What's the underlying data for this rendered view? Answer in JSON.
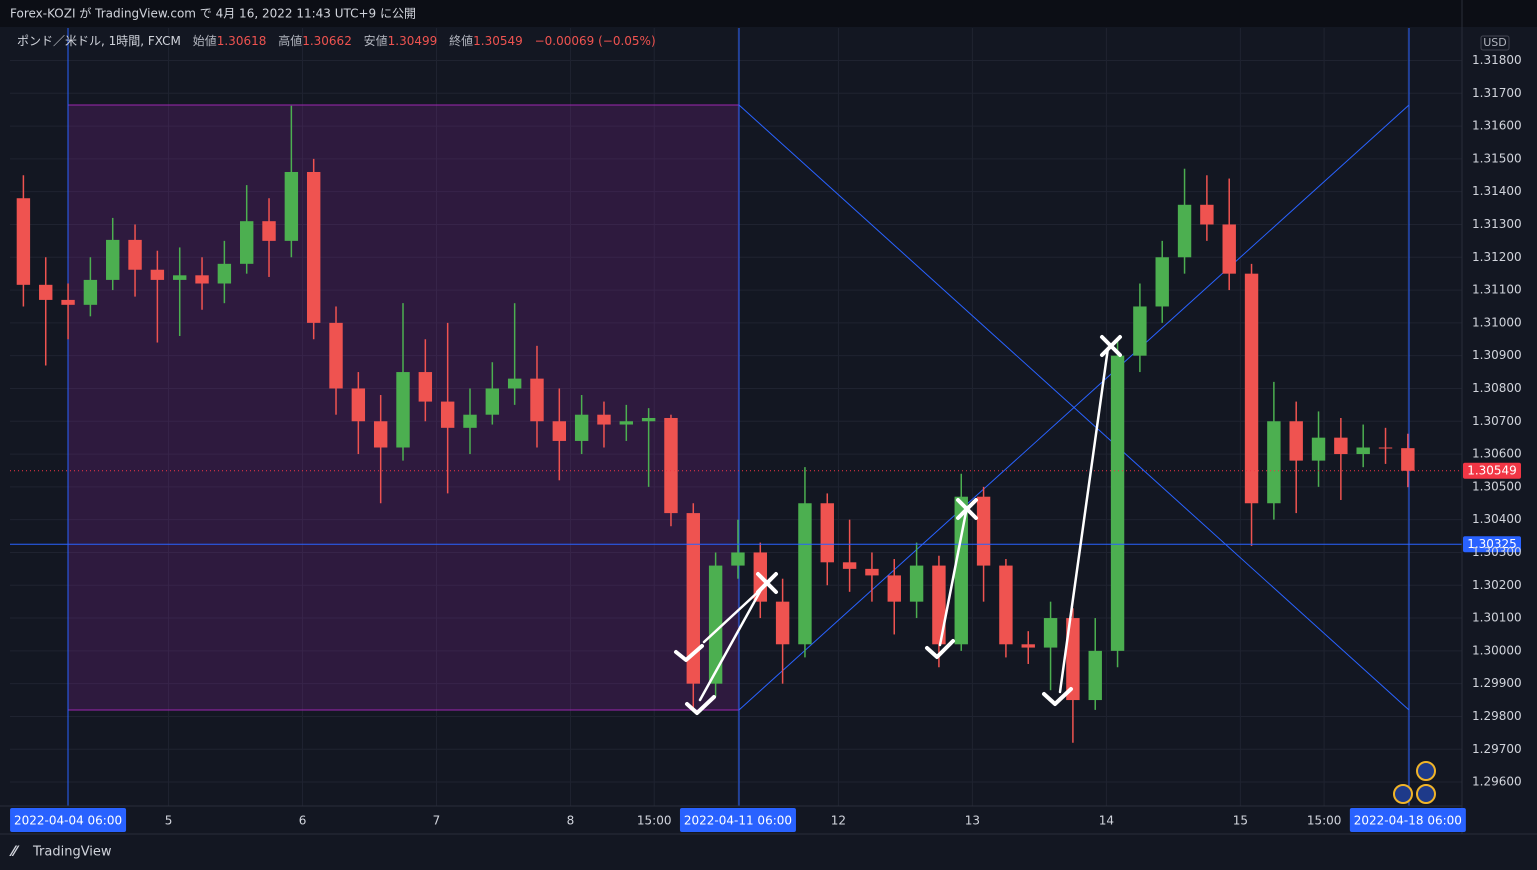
{
  "header": {
    "title": "Forex-KOZI が TradingView.com で 4月 16, 2022 11:43 UTC+9 に公開"
  },
  "legend": {
    "symbol": "ポンド／米ドル, 1時間, FXCM",
    "ohlc": [
      {
        "label": "始値",
        "value": "1.30618"
      },
      {
        "label": "高値",
        "value": "1.30662"
      },
      {
        "label": "安値",
        "value": "1.30499"
      },
      {
        "label": "終値",
        "value": "1.30549"
      }
    ],
    "change": "−0.00069 (−0.05%)"
  },
  "footer": {
    "brand": "TradingView"
  },
  "chart_data": {
    "type": "candlestick",
    "currency": "USD",
    "up_color": "#4caf50",
    "down_color": "#ef5350",
    "x": [
      -8,
      -4,
      0,
      4,
      8,
      12,
      16,
      20,
      24,
      28,
      32,
      36,
      40,
      44,
      48,
      52,
      56,
      60,
      64,
      68,
      72,
      76,
      80,
      84,
      88,
      92,
      96,
      100,
      104,
      108,
      112,
      116,
      120,
      124,
      128,
      132,
      136,
      140,
      144,
      148,
      152,
      156,
      160,
      164,
      168,
      172,
      176,
      180,
      184,
      188,
      192,
      196,
      200,
      204,
      208,
      212,
      216,
      220,
      224,
      228,
      232,
      236,
      240
    ],
    "open": [
      1.3138,
      1.31116,
      1.3107,
      1.31055,
      1.31131,
      1.31253,
      1.31162,
      1.31131,
      1.31145,
      1.3112,
      1.3118,
      1.3131,
      1.3125,
      1.3146,
      1.31,
      1.308,
      1.307,
      1.3062,
      1.3085,
      1.3076,
      1.3068,
      1.3072,
      1.308,
      1.3083,
      1.307,
      1.3064,
      1.3072,
      1.3069,
      1.307,
      1.3071,
      1.3042,
      1.299,
      1.3026,
      1.303,
      1.3015,
      1.3002,
      1.3045,
      1.3027,
      1.3025,
      1.3023,
      1.3015,
      1.3026,
      1.3002,
      1.3047,
      1.3026,
      1.3002,
      1.3001,
      1.301,
      1.2985,
      1.3,
      1.309,
      1.3105,
      1.312,
      1.3136,
      1.313,
      1.3115,
      1.3045,
      1.307,
      1.3058,
      1.3065,
      1.306,
      1.3062,
      1.30618
    ],
    "high": [
      1.3145,
      1.312,
      1.3112,
      1.312,
      1.3132,
      1.313,
      1.3122,
      1.3123,
      1.312,
      1.3125,
      1.3142,
      1.3138,
      1.31662,
      1.315,
      1.3105,
      1.3085,
      1.3078,
      1.3106,
      1.3095,
      1.31,
      1.308,
      1.3088,
      1.3106,
      1.3093,
      1.308,
      1.3078,
      1.3076,
      1.3075,
      1.3074,
      1.3072,
      1.3045,
      1.303,
      1.304,
      1.3033,
      1.3022,
      1.3056,
      1.3048,
      1.304,
      1.303,
      1.3028,
      1.3033,
      1.3029,
      1.3054,
      1.305,
      1.3028,
      1.3006,
      1.3015,
      1.3013,
      1.301,
      1.3095,
      1.3112,
      1.3125,
      1.3147,
      1.3145,
      1.3144,
      1.3118,
      1.3082,
      1.3076,
      1.3073,
      1.3071,
      1.3069,
      1.3068,
      1.30662
    ],
    "low": [
      1.3105,
      1.3087,
      1.3095,
      1.3102,
      1.311,
      1.3108,
      1.3094,
      1.3096,
      1.3104,
      1.3106,
      1.3115,
      1.3114,
      1.312,
      1.3095,
      1.3072,
      1.306,
      1.3045,
      1.3058,
      1.307,
      1.3048,
      1.306,
      1.3069,
      1.3075,
      1.3062,
      1.3052,
      1.306,
      1.3062,
      1.3064,
      1.305,
      1.3038,
      1.2982,
      1.2986,
      1.3022,
      1.301,
      1.299,
      1.2998,
      1.302,
      1.3018,
      1.3015,
      1.3005,
      1.301,
      1.2995,
      1.3,
      1.3015,
      1.2998,
      1.2996,
      1.2988,
      1.2972,
      1.2982,
      1.2995,
      1.3085,
      1.31,
      1.3115,
      1.3125,
      1.311,
      1.3032,
      1.304,
      1.3042,
      1.305,
      1.3046,
      1.3056,
      1.3057,
      1.30499
    ],
    "close": [
      1.31116,
      1.3107,
      1.31055,
      1.31131,
      1.31253,
      1.31162,
      1.31131,
      1.31145,
      1.3112,
      1.3118,
      1.3131,
      1.3125,
      1.3146,
      1.31,
      1.308,
      1.307,
      1.3062,
      1.3085,
      1.3076,
      1.3068,
      1.3072,
      1.308,
      1.3083,
      1.307,
      1.3064,
      1.3072,
      1.3069,
      1.307,
      1.3071,
      1.3042,
      1.299,
      1.3026,
      1.303,
      1.3015,
      1.3002,
      1.3045,
      1.3027,
      1.3025,
      1.3023,
      1.3015,
      1.3026,
      1.3002,
      1.3047,
      1.3026,
      1.3002,
      1.3001,
      1.301,
      1.2985,
      1.3,
      1.309,
      1.3105,
      1.312,
      1.3136,
      1.313,
      1.3115,
      1.3045,
      1.307,
      1.3058,
      1.3065,
      1.306,
      1.3062,
      1.30618,
      1.30549
    ],
    "xlim": [
      -10.4,
      249.7
    ],
    "xticks": [
      {
        "value": 0,
        "label": "2022-04-04   06:00"
      },
      {
        "value": 18,
        "label": "5"
      },
      {
        "value": 42,
        "label": "6"
      },
      {
        "value": 66,
        "label": "7"
      },
      {
        "value": 90,
        "label": "8"
      },
      {
        "value": 105,
        "label": "15:00"
      },
      {
        "value": 120,
        "label": "2022-04-11   06:00"
      },
      {
        "value": 138,
        "label": "12"
      },
      {
        "value": 162,
        "label": "13"
      },
      {
        "value": 186,
        "label": "14"
      },
      {
        "value": 210,
        "label": "15"
      },
      {
        "value": 225,
        "label": "15:00"
      },
      {
        "value": 240,
        "label": "2022-04-18   06:00"
      }
    ],
    "ylim": [
      1.29527,
      1.31899
    ],
    "yticks": [
      {
        "value": 1.296,
        "label": "1.29600"
      },
      {
        "value": 1.297,
        "label": "1.29700"
      },
      {
        "value": 1.298,
        "label": "1.29800"
      },
      {
        "value": 1.299,
        "label": "1.29900"
      },
      {
        "value": 1.3,
        "label": "1.30000"
      },
      {
        "value": 1.301,
        "label": "1.30100"
      },
      {
        "value": 1.302,
        "label": "1.30200"
      },
      {
        "value": 1.303,
        "label": "1.30300"
      },
      {
        "value": 1.304,
        "label": "1.30400"
      },
      {
        "value": 1.305,
        "label": "1.30500"
      },
      {
        "value": 1.306,
        "label": "1.30600"
      },
      {
        "value": 1.307,
        "label": "1.30700"
      },
      {
        "value": 1.308,
        "label": "1.30800"
      },
      {
        "value": 1.309,
        "label": "1.30900"
      },
      {
        "value": 1.31,
        "label": "1.31000"
      },
      {
        "value": 1.311,
        "label": "1.31100"
      },
      {
        "value": 1.312,
        "label": "1.31200"
      },
      {
        "value": 1.313,
        "label": "1.31300"
      },
      {
        "value": 1.314,
        "label": "1.31400"
      },
      {
        "value": 1.315,
        "label": "1.31500"
      },
      {
        "value": 1.316,
        "label": "1.31600"
      },
      {
        "value": 1.317,
        "label": "1.31700"
      },
      {
        "value": 1.318,
        "label": "1.31800"
      }
    ],
    "price_lines": [
      {
        "value": 1.30325,
        "color": "#2962ff"
      },
      {
        "value": 1.30549,
        "color": "#f23645"
      }
    ],
    "grid": true
  }
}
